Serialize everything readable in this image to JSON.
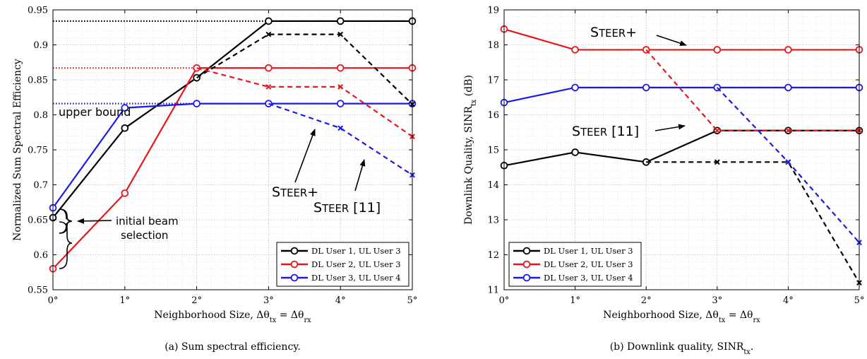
{
  "chart_data": [
    {
      "type": "line",
      "caption": "(a) Sum spectral efficiency.",
      "xlabel": "Neighborhood Size, Δθ_tx = Δθ_rx",
      "ylabel": "Normalized Sum Spectral Efficiency",
      "x": [
        0,
        1,
        2,
        3,
        4,
        5
      ],
      "xtick_labels": [
        "0°",
        "1°",
        "2°",
        "3°",
        "4°",
        "5°"
      ],
      "ylim": [
        0.55,
        0.95
      ],
      "yticks": [
        0.55,
        0.6,
        0.65,
        0.7,
        0.75,
        0.8,
        0.85,
        0.9,
        0.95
      ],
      "ytick_labels": [
        "0.55",
        "0.6",
        "0.65",
        "0.7",
        "0.75",
        "0.8",
        "0.85",
        "0.9",
        "0.95"
      ],
      "grid": true,
      "legend_position": "bottom-right",
      "series": [
        {
          "name": "DL User 1, UL User 3",
          "color": "#000000",
          "method": "STEER+",
          "values": [
            0.653,
            0.781,
            0.853,
            0.934,
            0.934,
            0.934
          ]
        },
        {
          "name": "DL User 2, UL User 3",
          "color": "#e8161b",
          "method": "STEER+",
          "values": [
            0.58,
            0.688,
            0.867,
            0.867,
            0.867,
            0.867
          ]
        },
        {
          "name": "DL User 3, UL User 4",
          "color": "#1a1ae8",
          "method": "STEER+",
          "values": [
            0.667,
            0.81,
            0.816,
            0.816,
            0.816,
            0.816
          ]
        },
        {
          "color": "#000000",
          "method": "STEER [11]",
          "x": [
            2,
            3,
            4,
            5
          ],
          "values": [
            0.853,
            0.915,
            0.915,
            0.815
          ]
        },
        {
          "color": "#e8161b",
          "method": "STEER [11]",
          "x": [
            2,
            3,
            4,
            5
          ],
          "values": [
            0.867,
            0.84,
            0.84,
            0.769
          ]
        },
        {
          "color": "#1a1ae8",
          "method": "STEER [11]",
          "x": [
            3,
            4,
            5
          ],
          "values": [
            0.816,
            0.781,
            0.714
          ]
        }
      ],
      "upper_bounds": [
        {
          "color": "#000000",
          "value": 0.934
        },
        {
          "color": "#e8161b",
          "value": 0.867
        },
        {
          "color": "#1a1ae8",
          "value": 0.816
        }
      ],
      "annotations": {
        "upper_bound": "upper bound",
        "steer_plus": "STEER+",
        "steer": "STEER [11]",
        "initial_beam_line1": "initial beam",
        "initial_beam_line2": "selection"
      }
    },
    {
      "type": "line",
      "caption": "(b) Downlink quality, SINR_tx.",
      "xlabel": "Neighborhood Size, Δθ_tx = Δθ_rx",
      "ylabel": "Downlink Quality, SINR_tx (dB)",
      "x": [
        0,
        1,
        2,
        3,
        4,
        5
      ],
      "xtick_labels": [
        "0°",
        "1°",
        "2°",
        "3°",
        "4°",
        "5°"
      ],
      "ylim": [
        11,
        19
      ],
      "yticks": [
        11,
        12,
        13,
        14,
        15,
        16,
        17,
        18,
        19
      ],
      "ytick_labels": [
        "11",
        "12",
        "13",
        "14",
        "15",
        "16",
        "17",
        "18",
        "19"
      ],
      "grid": true,
      "legend_position": "bottom-left",
      "series": [
        {
          "name": "DL User 1, UL User 3",
          "color": "#000000",
          "method": "STEER+",
          "values": [
            14.55,
            14.93,
            14.65,
            15.55,
            15.55,
            15.55
          ]
        },
        {
          "name": "DL User 2, UL User 3",
          "color": "#e8161b",
          "method": "STEER+",
          "values": [
            18.45,
            17.86,
            17.86,
            17.86,
            17.86,
            17.86
          ]
        },
        {
          "name": "DL User 3, UL User 4",
          "color": "#1a1ae8",
          "method": "STEER+",
          "values": [
            16.35,
            16.78,
            16.78,
            16.78,
            16.78,
            16.78
          ]
        },
        {
          "color": "#000000",
          "method": "STEER [11]",
          "x": [
            2,
            3,
            4,
            5
          ],
          "values": [
            14.65,
            14.65,
            14.65,
            11.2
          ]
        },
        {
          "color": "#e8161b",
          "method": "STEER [11]",
          "x": [
            2,
            3,
            4,
            5
          ],
          "values": [
            17.86,
            15.55,
            15.55,
            15.55
          ]
        },
        {
          "color": "#1a1ae8",
          "method": "STEER [11]",
          "x": [
            3,
            4,
            5
          ],
          "values": [
            16.78,
            14.65,
            12.35
          ]
        }
      ],
      "annotations": {
        "steer_plus": "STEER+",
        "steer": "STEER [11]"
      }
    }
  ]
}
